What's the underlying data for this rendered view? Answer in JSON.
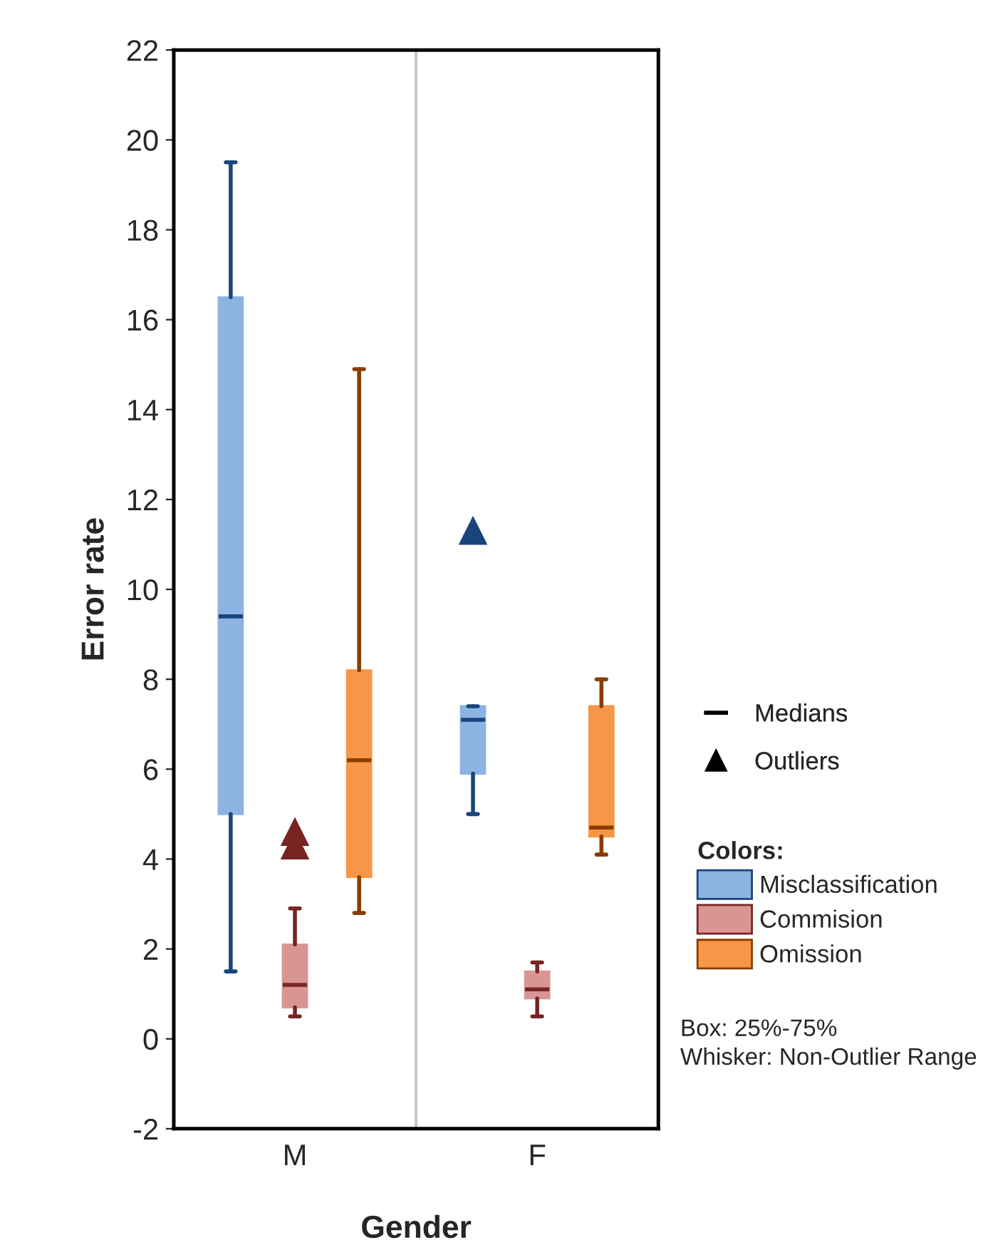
{
  "chart_data": {
    "type": "box",
    "xlabel": "Gender",
    "ylabel": "Error rate",
    "legend_title": "Colors:",
    "categories": [
      "M",
      "F"
    ],
    "ylim": [
      -2,
      22
    ],
    "yticks": [
      -2,
      0,
      2,
      4,
      6,
      8,
      10,
      12,
      14,
      16,
      18,
      20,
      22
    ],
    "legend": "right",
    "marker": "triangle",
    "series": [
      {
        "name": "Misclassification",
        "color": "#8db3e2",
        "boxes": [
          {
            "low": 1.5,
            "q1": 5.0,
            "median": 9.4,
            "q3": 16.5,
            "high": 19.5
          },
          {
            "low": 5.0,
            "q1": 5.9,
            "median": 7.1,
            "q3": 7.4,
            "high": 7.4,
            "outliers": [
              11.3
            ]
          }
        ]
      },
      {
        "name": "Commision",
        "color": "#d99594",
        "boxes": [
          {
            "low": 0.5,
            "q1": 0.7,
            "median": 1.2,
            "q3": 2.1,
            "high": 2.9,
            "outliers": [
              4.3,
              4.6
            ]
          },
          {
            "low": 0.5,
            "q1": 0.9,
            "median": 1.1,
            "q3": 1.5,
            "high": 1.7
          }
        ]
      },
      {
        "name": "Omission",
        "color": "#f79646",
        "boxes": [
          {
            "low": 2.8,
            "q1": 3.6,
            "median": 6.2,
            "q3": 8.2,
            "high": 14.9
          },
          {
            "low": 4.1,
            "q1": 4.5,
            "median": 4.7,
            "q3": 7.4,
            "high": 8.0
          }
        ]
      }
    ],
    "annotations": [
      "Medians",
      "Outliers",
      "Box: 25%-75%",
      "Whisker: Non-Outlier Range"
    ]
  }
}
